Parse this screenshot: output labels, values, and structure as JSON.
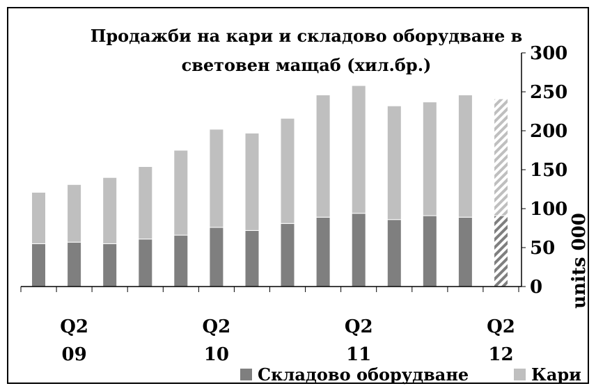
{
  "chart_data": {
    "type": "bar",
    "stacked": true,
    "title_lines": [
      "Продажби на кари и складово оборудване в",
      "световен мащаб (хил.бр.)"
    ],
    "ylabel": "units 000",
    "ylim": [
      0,
      300
    ],
    "y_ticks": [
      "0",
      "50",
      "100",
      "150",
      "200",
      "250",
      "300"
    ],
    "y_axis_side": "right",
    "grid": false,
    "x_tick_labels": [
      {
        "index": 1,
        "line1": "Q2",
        "line2": "09"
      },
      {
        "index": 5,
        "line1": "Q2",
        "line2": "10"
      },
      {
        "index": 9,
        "line1": "Q2",
        "line2": "11"
      },
      {
        "index": 13,
        "line1": "Q2",
        "line2": "12"
      }
    ],
    "bar_count": 14,
    "forecast_indices": [
      13
    ],
    "series": [
      {
        "name": "Складово оборудване",
        "color": "#7f7f7f",
        "values": [
          55,
          57,
          55,
          61,
          66,
          76,
          72,
          81,
          89,
          94,
          86,
          91,
          89,
          91
        ]
      },
      {
        "name": "Кари",
        "color": "#bfbfbf",
        "values": [
          66,
          74,
          85,
          93,
          109,
          126,
          125,
          135,
          157,
          164,
          146,
          146,
          157,
          150
        ]
      }
    ],
    "legend_position": "bottom-right"
  }
}
